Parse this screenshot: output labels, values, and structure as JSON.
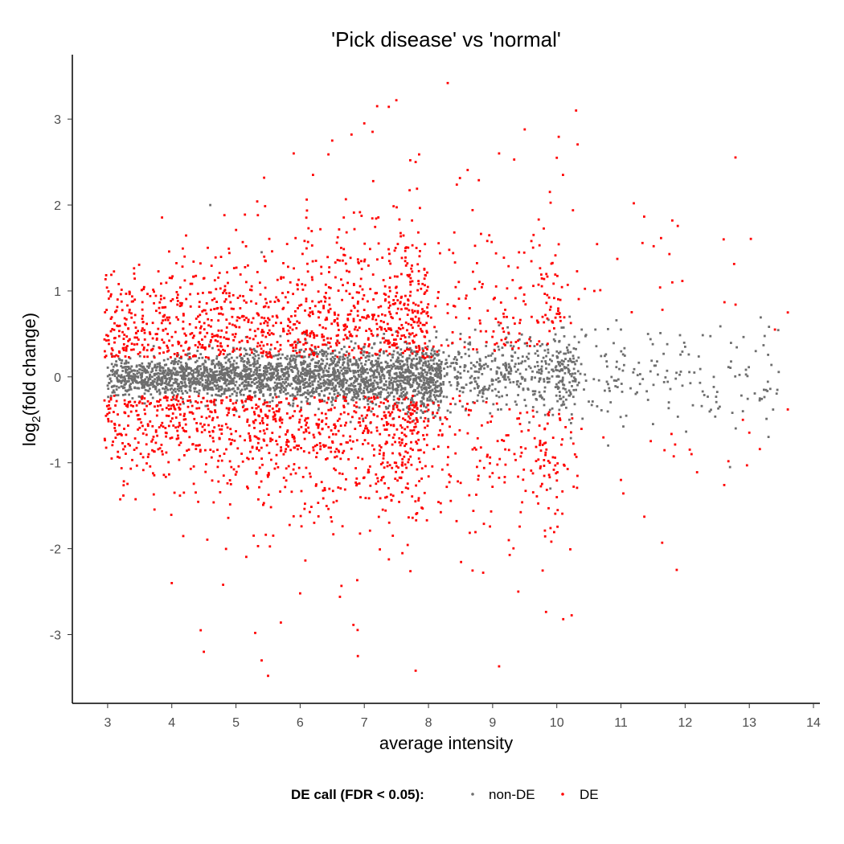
{
  "chart_data": {
    "type": "scatter",
    "title": "'Pick disease' vs 'normal'",
    "xlabel": "average intensity",
    "ylabel_main": "log",
    "ylabel_sub": "2",
    "ylabel_rest": "(fold change)",
    "xlim": [
      2.45,
      14.1
    ],
    "ylim": [
      -3.8,
      3.75
    ],
    "x_ticks": [
      3,
      4,
      5,
      6,
      7,
      8,
      9,
      10,
      11,
      12,
      13,
      14
    ],
    "y_ticks": [
      -3,
      -2,
      -1,
      0,
      1,
      2,
      3
    ],
    "grid": false,
    "legend": {
      "position": "bottom",
      "title": "DE call (FDR < 0.05):",
      "entries": [
        {
          "label": "non-DE",
          "color": "#6e6e6e"
        },
        {
          "label": "DE",
          "color": "#ff0000"
        }
      ]
    },
    "series": [
      {
        "name": "non-DE",
        "color": "#6e6e6e",
        "description_points": "dense band around 0 across intensities 3-13.3; widening beyond 9",
        "points": [
          [
            4.6,
            2.0
          ],
          [
            5.4,
            1.45
          ],
          [
            7.0,
            0.35
          ],
          [
            8.5,
            0.5
          ],
          [
            9.1,
            0.6
          ],
          [
            10.2,
            0.7
          ],
          [
            11.0,
            0.55
          ],
          [
            12.0,
            0.35
          ],
          [
            12.7,
            -1.05
          ],
          [
            13.3,
            -0.7
          ],
          [
            10.8,
            -0.8
          ],
          [
            9.9,
            -1.3
          ],
          [
            11.5,
            -0.55
          ],
          [
            13.1,
            0.3
          ],
          [
            12.9,
            -0.4
          ]
        ]
      },
      {
        "name": "DE",
        "color": "#ff0000",
        "points": [
          [
            8.3,
            3.42
          ],
          [
            7.5,
            3.22
          ],
          [
            7.2,
            3.15
          ],
          [
            10.3,
            3.1
          ],
          [
            7.0,
            2.95
          ],
          [
            9.5,
            2.88
          ],
          [
            6.8,
            2.82
          ],
          [
            6.5,
            2.75
          ],
          [
            5.9,
            2.6
          ],
          [
            9.1,
            2.6
          ],
          [
            10.0,
            2.55
          ],
          [
            7.8,
            2.5
          ],
          [
            6.2,
            2.35
          ],
          [
            11.2,
            2.02
          ],
          [
            11.8,
            1.82
          ],
          [
            12.6,
            1.6
          ],
          [
            13.6,
            0.75
          ],
          [
            13.4,
            0.55
          ],
          [
            13.0,
            -0.65
          ],
          [
            13.6,
            -0.38
          ],
          [
            12.9,
            -0.5
          ],
          [
            5.5,
            -3.48
          ],
          [
            7.8,
            -3.42
          ],
          [
            9.1,
            -3.37
          ],
          [
            4.5,
            -3.2
          ],
          [
            5.4,
            -3.3
          ],
          [
            6.9,
            -3.25
          ],
          [
            4.45,
            -2.95
          ],
          [
            5.3,
            -2.98
          ],
          [
            5.7,
            -2.86
          ],
          [
            10.1,
            -2.82
          ],
          [
            4.0,
            -2.4
          ],
          [
            4.8,
            -2.42
          ],
          [
            6.0,
            -2.52
          ],
          [
            9.4,
            -2.5
          ],
          [
            4.2,
            1.4
          ],
          [
            10.0,
            -1.4
          ],
          [
            11.0,
            -1.2
          ],
          [
            12.1,
            -0.9
          ],
          [
            11.8,
            1.1
          ]
        ]
      }
    ]
  }
}
